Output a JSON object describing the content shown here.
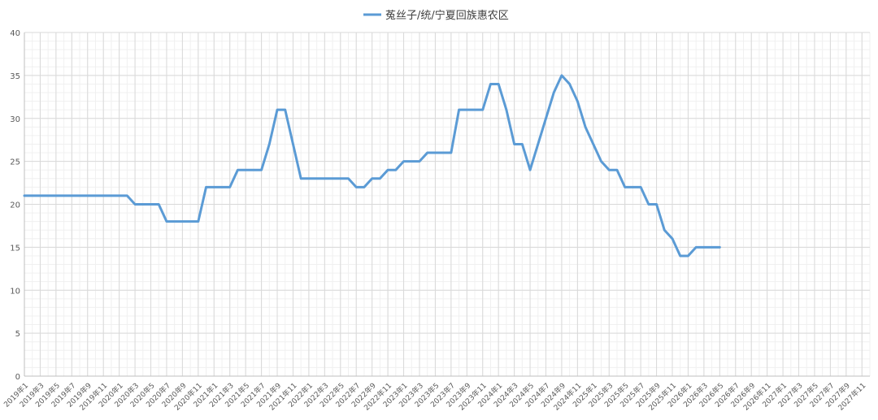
{
  "chart_data": {
    "type": "line",
    "legend": {
      "entries": [
        "菟丝子/统/宁夏回族惠农区"
      ],
      "position": "top"
    },
    "series_color": "#5B9BD5",
    "grid": true,
    "ylim": [
      0,
      40
    ],
    "yticks": [
      0,
      5,
      10,
      15,
      20,
      25,
      30,
      35,
      40
    ],
    "xlabels": [
      "2019年1",
      "2019年3",
      "2019年5",
      "2019年7",
      "2019年9",
      "2019年11",
      "2020年1",
      "2020年3",
      "2020年5",
      "2020年7",
      "2020年9",
      "2020年11",
      "2021年1",
      "2021年3",
      "2021年5",
      "2021年7",
      "2021年9",
      "2021年11",
      "2022年1",
      "2022年3",
      "2022年5",
      "2022年7",
      "2022年9",
      "2022年11",
      "2023年1",
      "2023年3",
      "2023年5",
      "2023年7",
      "2023年9",
      "2023年11",
      "2024年1",
      "2024年3",
      "2024年5",
      "2024年7",
      "2024年9",
      "2024年11",
      "2025年1",
      "2025年3",
      "2025年5",
      "2025年7",
      "2025年9",
      "2025年11",
      "2026年1",
      "2026年3",
      "2026年5",
      "2026年7",
      "2026年9",
      "2026年11",
      "2027年1",
      "2027年3",
      "2027年5",
      "2027年7",
      "2027年9",
      "2027年11"
    ],
    "series": [
      {
        "name": "菟丝子/统/宁夏回族惠农区",
        "x": [
          "2019-01",
          "2019-02",
          "2019-03",
          "2019-04",
          "2019-05",
          "2019-06",
          "2019-07",
          "2019-08",
          "2019-09",
          "2019-10",
          "2019-11",
          "2019-12",
          "2020-01",
          "2020-02",
          "2020-03",
          "2020-04",
          "2020-05",
          "2020-06",
          "2020-07",
          "2020-08",
          "2020-09",
          "2020-10",
          "2020-11",
          "2020-12",
          "2021-01",
          "2021-02",
          "2021-03",
          "2021-04",
          "2021-05",
          "2021-06",
          "2021-07",
          "2021-08",
          "2021-09",
          "2021-10",
          "2021-11",
          "2021-12",
          "2022-01",
          "2022-02",
          "2022-03",
          "2022-04",
          "2022-05",
          "2022-06",
          "2022-07",
          "2022-08",
          "2022-09",
          "2022-10",
          "2022-11",
          "2022-12",
          "2023-01",
          "2023-02",
          "2023-03",
          "2023-04",
          "2023-05",
          "2023-06",
          "2023-07",
          "2023-08",
          "2023-09",
          "2023-10",
          "2023-11",
          "2023-12",
          "2024-01",
          "2024-02",
          "2024-03",
          "2024-04",
          "2024-05",
          "2024-06",
          "2024-07",
          "2024-08",
          "2024-09",
          "2024-10",
          "2024-11",
          "2024-12",
          "2025-01",
          "2025-02",
          "2025-03",
          "2025-04",
          "2025-05",
          "2025-06",
          "2025-07",
          "2025-08",
          "2025-09",
          "2025-10",
          "2025-11",
          "2025-12",
          "2026-01",
          "2026-02",
          "2026-03",
          "2026-04",
          "2026-05"
        ],
        "values": [
          21,
          21,
          21,
          21,
          21,
          21,
          21,
          21,
          21,
          21,
          21,
          21,
          21,
          21,
          20,
          20,
          20,
          20,
          18,
          18,
          18,
          18,
          18,
          22,
          22,
          22,
          22,
          24,
          24,
          24,
          24,
          27,
          31,
          31,
          27,
          23,
          23,
          23,
          23,
          23,
          23,
          23,
          22,
          22,
          23,
          23,
          24,
          24,
          25,
          25,
          25,
          26,
          26,
          26,
          26,
          31,
          31,
          31,
          31,
          34,
          34,
          31,
          27,
          27,
          24,
          27,
          30,
          33,
          35,
          34,
          32,
          29,
          27,
          25,
          24,
          24,
          22,
          22,
          22,
          20,
          20,
          17,
          16,
          14,
          14,
          15,
          15,
          15,
          15
        ]
      }
    ]
  }
}
